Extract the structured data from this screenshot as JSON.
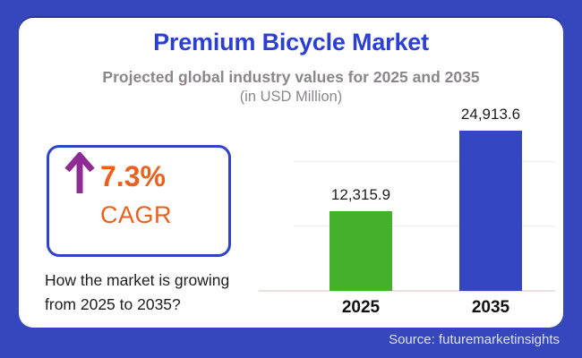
{
  "colors": {
    "frame_blue": "#3647bd",
    "card_bg": "#ffffff",
    "card_top_edge": "#2c34a0",
    "title_blue": "#2c3fd4",
    "muted_gray": "#8b868a",
    "box_border_blue": "#3142c9",
    "accent_orange": "#e8611e",
    "arrow_purple": "#8e2b94",
    "bar_green": "#44b02b",
    "bar_blue": "#3447c1",
    "gridline": "#f4eceb",
    "baseline": "#e9e1e0",
    "text_dark": "#1d1d1d",
    "source_text": "#dde0f3"
  },
  "header": {
    "title": "Premium Bicycle Market",
    "subtitle": "Projected global industry values for 2025 and 2035",
    "unit_note": "(in USD Million)"
  },
  "cagr_box": {
    "value": "7.3%",
    "label": "CAGR",
    "arrow_color": "#8e2b94"
  },
  "question": {
    "line1": "How the market is growing",
    "line2": "from 2025 to 2035?"
  },
  "chart_data": {
    "type": "bar",
    "title": "Premium Bicycle Market",
    "subtitle": "Projected global industry values for 2025 and 2035",
    "unit": "USD Million",
    "categories": [
      "2025",
      "2035"
    ],
    "values": [
      12315.9,
      24913.6
    ],
    "value_labels": [
      "12,315.9",
      "24,913.6"
    ],
    "series_colors": [
      "#44b02b",
      "#3447c1"
    ],
    "ylim": [
      0,
      25000
    ],
    "gridline_step": 10000,
    "grid": true,
    "legend": false,
    "cagr_pct": 7.3
  },
  "footer": {
    "source_text": "Source: futuremarketinsights"
  }
}
